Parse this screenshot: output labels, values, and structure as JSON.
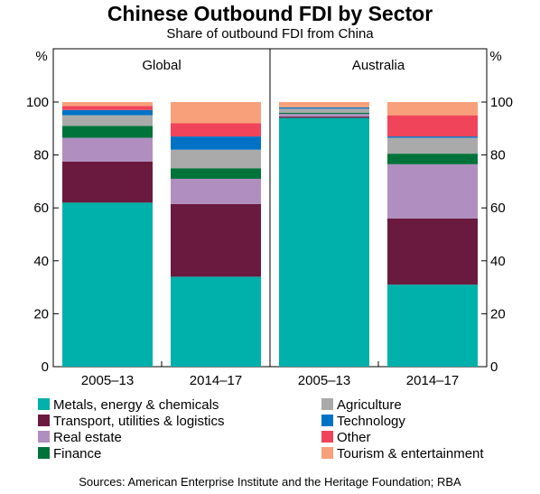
{
  "chart_data": {
    "type": "bar",
    "stacked": true,
    "title": "Chinese Outbound FDI by Sector",
    "subtitle": "Share of outbound FDI from China",
    "ylabel_left": "%",
    "ylabel_right": "%",
    "ylim": [
      0,
      100
    ],
    "yticks": [
      0,
      20,
      40,
      60,
      80,
      100
    ],
    "grid": false,
    "legend_position": "bottom",
    "panels": [
      {
        "name": "Global",
        "categories": [
          "2005–13",
          "2014–17"
        ],
        "series": [
          {
            "name": "Metals, energy & chemicals",
            "color": "#00b0aa",
            "values": [
              62,
              34
            ]
          },
          {
            "name": "Transport, utilities & logistics",
            "color": "#6a1a3e",
            "values": [
              15.5,
              27.5
            ]
          },
          {
            "name": "Real estate",
            "color": "#b08fc0",
            "values": [
              9,
              9.5
            ]
          },
          {
            "name": "Finance",
            "color": "#00733a",
            "values": [
              4.5,
              4
            ]
          },
          {
            "name": "Agriculture",
            "color": "#aaaaaa",
            "values": [
              4,
              7
            ]
          },
          {
            "name": "Technology",
            "color": "#0072c6",
            "values": [
              2,
              5
            ]
          },
          {
            "name": "Other",
            "color": "#f0445a",
            "values": [
              1.5,
              5
            ]
          },
          {
            "name": "Tourism & entertainment",
            "color": "#f8a07a",
            "values": [
              1.5,
              8
            ]
          }
        ]
      },
      {
        "name": "Australia",
        "categories": [
          "2005–13",
          "2014–17"
        ],
        "series": [
          {
            "name": "Metals, energy & chemicals",
            "color": "#00b0aa",
            "values": [
              94,
              31
            ]
          },
          {
            "name": "Transport, utilities & logistics",
            "color": "#6a1a3e",
            "values": [
              0.5,
              25
            ]
          },
          {
            "name": "Real estate",
            "color": "#b08fc0",
            "values": [
              1,
              20.5
            ]
          },
          {
            "name": "Finance",
            "color": "#00733a",
            "values": [
              0.5,
              4
            ]
          },
          {
            "name": "Agriculture",
            "color": "#aaaaaa",
            "values": [
              1.5,
              6
            ]
          },
          {
            "name": "Technology",
            "color": "#0072c6",
            "values": [
              0.5,
              0.5
            ]
          },
          {
            "name": "Other",
            "color": "#f0445a",
            "values": [
              0,
              8
            ]
          },
          {
            "name": "Tourism & entertainment",
            "color": "#f8a07a",
            "values": [
              2,
              5
            ]
          }
        ]
      }
    ],
    "legend": [
      {
        "label": "Metals, energy & chemicals",
        "color": "#00b0aa"
      },
      {
        "label": "Transport, utilities & logistics",
        "color": "#6a1a3e"
      },
      {
        "label": "Real estate",
        "color": "#b08fc0"
      },
      {
        "label": "Finance",
        "color": "#00733a"
      },
      {
        "label": "Agriculture",
        "color": "#aaaaaa"
      },
      {
        "label": "Technology",
        "color": "#0072c6"
      },
      {
        "label": "Other",
        "color": "#f0445a"
      },
      {
        "label": "Tourism & entertainment",
        "color": "#f8a07a"
      }
    ],
    "source": "Sources:   American Enterprise Institute and the Heritage Foundation; RBA"
  }
}
